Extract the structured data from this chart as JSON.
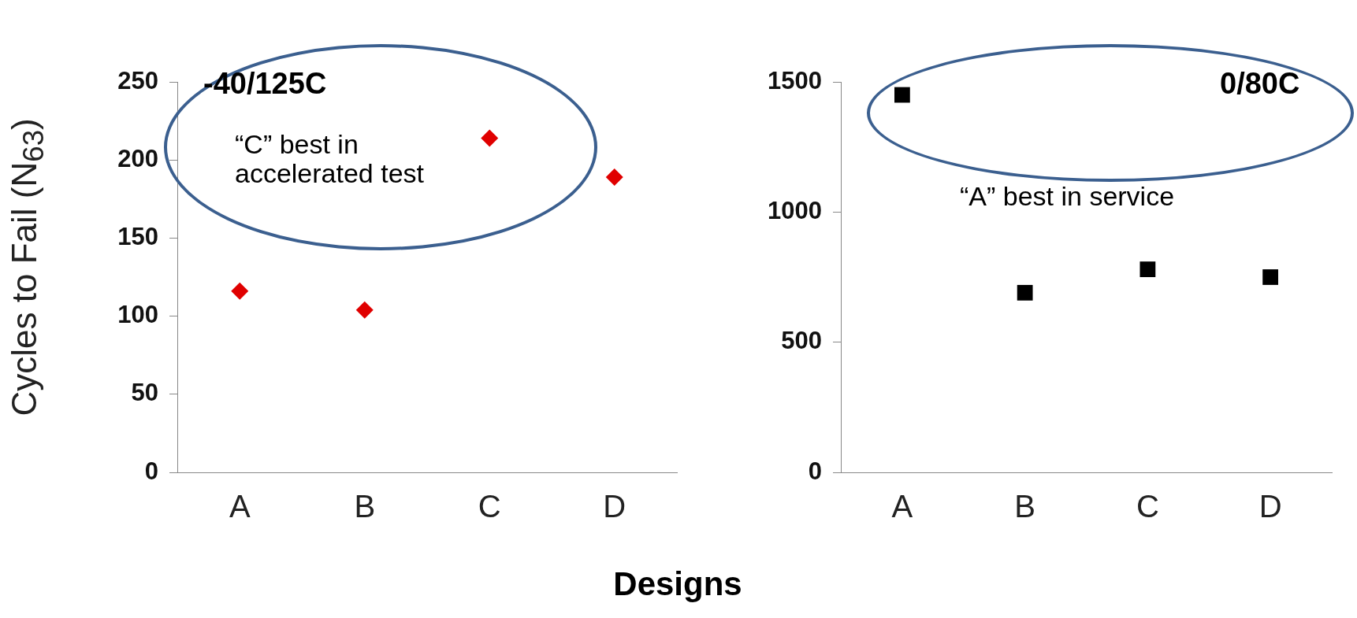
{
  "chart_data": [
    {
      "type": "scatter",
      "ylabel": "Cycles to Fail (N$_{63}$)",
      "xlabel": "Designs",
      "categories": [
        "A",
        "B",
        "C",
        "D"
      ],
      "values": [
        116,
        104,
        214,
        189
      ],
      "color": "#e00000",
      "marker": "diamond",
      "ylim": [
        0,
        250
      ],
      "yticks": [
        0,
        50,
        100,
        150,
        200,
        250
      ],
      "grid": false,
      "legend": false,
      "annotations": [
        "-40/125C",
        "“C” best in accelerated test"
      ]
    },
    {
      "type": "scatter",
      "categories": [
        "A",
        "B",
        "C",
        "D"
      ],
      "values": [
        1450,
        690,
        780,
        750
      ],
      "color": "#000000",
      "marker": "square",
      "ylim": [
        0,
        1500
      ],
      "yticks": [
        0,
        500,
        1000,
        1500
      ],
      "grid": false,
      "legend": false,
      "annotations": [
        "0/80C",
        "“A” best in service"
      ]
    }
  ]
}
